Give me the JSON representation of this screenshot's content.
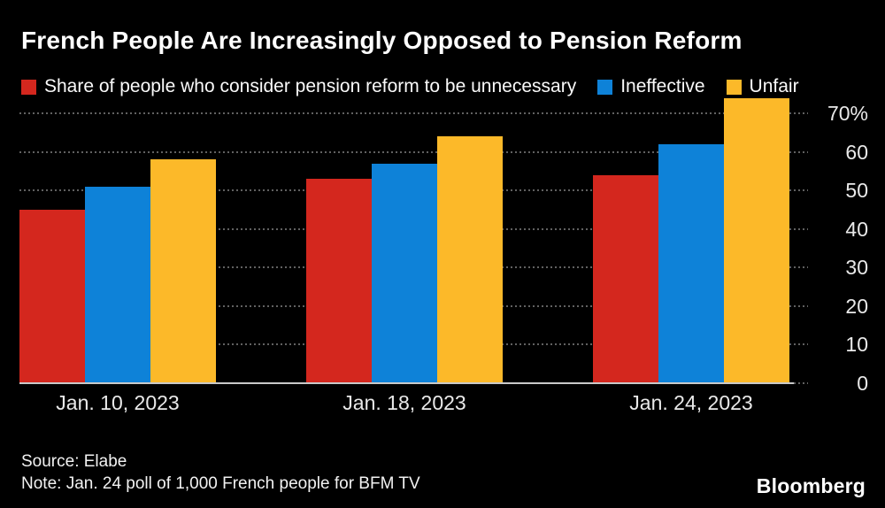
{
  "title": "French People Are Increasingly Opposed to Pension Reform",
  "legend": [
    {
      "label": "Share of people who consider pension reform to be unnecessary",
      "color": "#d4271e",
      "icon": "red-swatch-icon"
    },
    {
      "label": "Ineffective",
      "color": "#0e82d8",
      "icon": "blue-swatch-icon"
    },
    {
      "label": "Unfair",
      "color": "#fcb929",
      "icon": "yellow-swatch-icon"
    }
  ],
  "chart_data": {
    "type": "bar",
    "title": "French People Are Increasingly Opposed to Pension Reform",
    "categories": [
      "Jan. 10, 2023",
      "Jan. 18, 2023",
      "Jan. 24, 2023"
    ],
    "series": [
      {
        "name": "Share of people who consider pension reform to be unnecessary",
        "color": "#d4271e",
        "values": [
          45,
          53,
          54
        ]
      },
      {
        "name": "Ineffective",
        "color": "#0e82d8",
        "values": [
          51,
          57,
          62
        ]
      },
      {
        "name": "Unfair",
        "color": "#fcb929",
        "values": [
          58,
          64,
          74
        ]
      }
    ],
    "xlabel": "",
    "ylabel": "",
    "ylim": [
      0,
      75
    ],
    "yticks": [
      0,
      10,
      20,
      30,
      40,
      50,
      60,
      70
    ],
    "ytick_labels": [
      "0",
      "10",
      "20",
      "30",
      "40",
      "50",
      "60",
      "70%"
    ],
    "grid": "horizontal-dotted",
    "legend_position": "top",
    "axis_side": "right",
    "unit": "%"
  },
  "colors": {
    "background": "#000000",
    "grid": "#616161",
    "baseline": "#c9c9c9",
    "axis_text": "#e9e9e9",
    "title_text": "#ffffff"
  },
  "footer": {
    "source": "Source: Elabe",
    "note": "Note: Jan. 24 poll of 1,000 French people for BFM TV",
    "brand": "Bloomberg"
  }
}
